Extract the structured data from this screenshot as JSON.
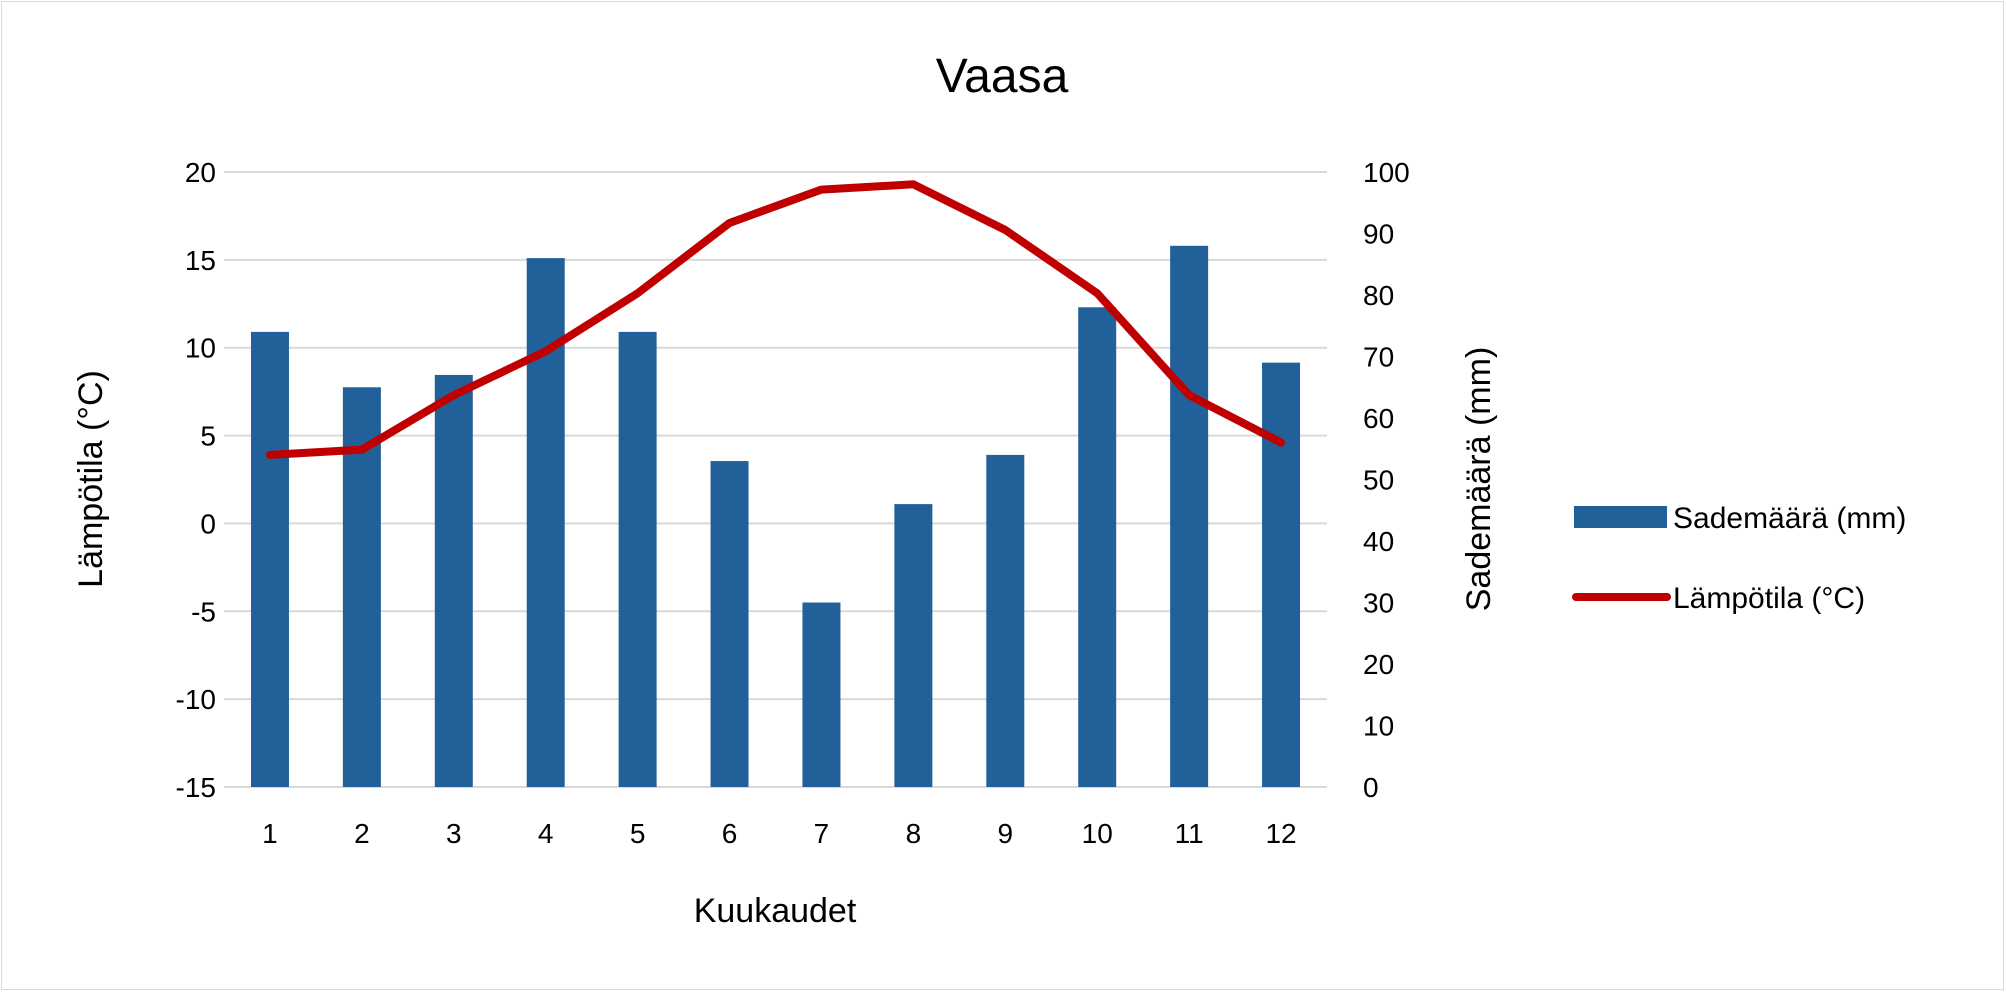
{
  "chart_data": {
    "type": "bar+line",
    "title": "Vaasa",
    "xlabel": "Kuukaudet",
    "ylabel_left": "Lämpötila (°C)",
    "ylabel_right": "Sademäärä (mm)",
    "categories": [
      "1",
      "2",
      "3",
      "4",
      "5",
      "6",
      "7",
      "8",
      "9",
      "10",
      "11",
      "12"
    ],
    "left_axis": {
      "ylim": [
        -15,
        20
      ],
      "ticks": [
        "-15",
        "-10",
        "-5",
        "0",
        "5",
        "10",
        "15",
        "20"
      ]
    },
    "right_axis": {
      "ylim": [
        0,
        100
      ],
      "ticks": [
        "0",
        "10",
        "20",
        "30",
        "40",
        "50",
        "60",
        "70",
        "80",
        "90",
        "100"
      ]
    },
    "grid": true,
    "legend_position": "right",
    "series": [
      {
        "name": "Sademäärä (mm)",
        "type": "bar",
        "axis": "right",
        "color": "#22609a",
        "values": [
          74,
          65,
          67,
          86,
          74,
          53,
          30,
          46,
          54,
          78,
          88,
          69
        ]
      },
      {
        "name": "Lämpötila (°C)",
        "type": "line",
        "axis": "left",
        "color": "#c00000",
        "values": [
          3.9,
          4.2,
          7.3,
          9.8,
          13.1,
          17.1,
          19.0,
          19.3,
          16.7,
          13.1,
          7.3,
          4.6
        ]
      }
    ]
  }
}
